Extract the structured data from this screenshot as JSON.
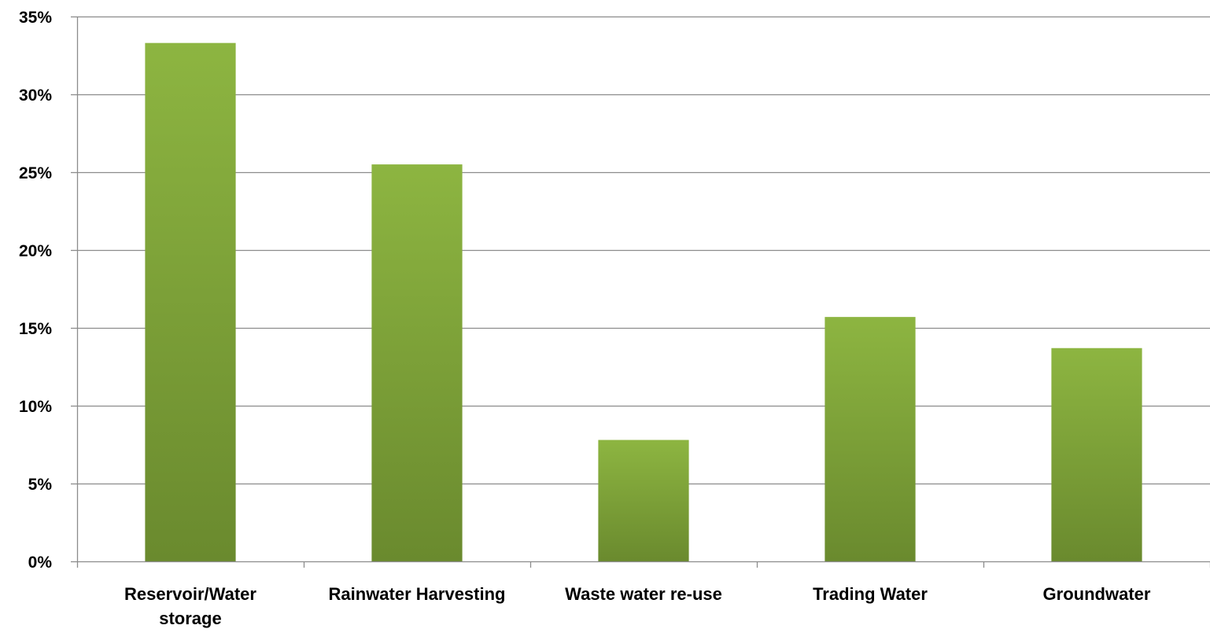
{
  "chart_data": {
    "type": "bar",
    "title": "",
    "xlabel": "",
    "ylabel": "",
    "categories": [
      [
        "Reservoir/Water",
        "storage"
      ],
      [
        "Rainwater Harvesting"
      ],
      [
        "Waste water re-use"
      ],
      [
        "Trading Water"
      ],
      [
        "Groundwater"
      ]
    ],
    "values": [
      33.3,
      25.5,
      7.8,
      15.7,
      13.7
    ],
    "ylim": [
      0,
      35
    ],
    "yticks": [
      0,
      5,
      10,
      15,
      20,
      25,
      30,
      35
    ],
    "ytick_labels": [
      "0%",
      "5%",
      "10%",
      "15%",
      "20%",
      "25%",
      "30%",
      "35%"
    ],
    "value_unit": "%",
    "grid": true,
    "legend": "none",
    "colors": {
      "bar_top": "#8db541",
      "bar_bottom": "#6a8a2e",
      "gridline": "#8c8c8c",
      "axis": "#8c8c8c"
    }
  }
}
